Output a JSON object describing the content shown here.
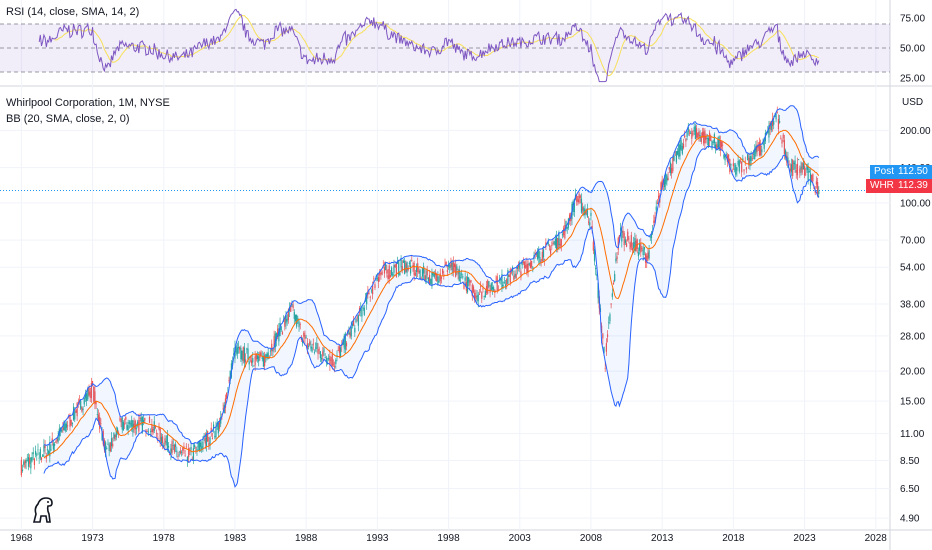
{
  "rsi": {
    "label": "RSI (14, close, SMA, 14, 2)",
    "levels": [
      30,
      50,
      70
    ],
    "ticks": [
      "75.00",
      "50.00",
      "25.00"
    ],
    "line_color": "#7e57c2",
    "signal_color": "#f7e05a"
  },
  "header": {
    "symbol_label": "Whirlpool Corporation, 1M, NYSE",
    "bb_label": "BB (20, SMA, close, 2, 0)"
  },
  "currency": "USD",
  "price_ticks": [
    "200.00",
    "140.00",
    "100.00",
    "70.00",
    "54.00",
    "38.00",
    "28.00",
    "20.00",
    "15.00",
    "11.00",
    "8.50",
    "6.50",
    "4.90"
  ],
  "x_ticks": [
    "1968",
    "1973",
    "1978",
    "1983",
    "1988",
    "1993",
    "1998",
    "2003",
    "2008",
    "2013",
    "2018",
    "2023",
    "2028"
  ],
  "badges": {
    "post_label": "Post",
    "post_value": "112.50",
    "whr_label": "WHR",
    "whr_value": "112.39"
  },
  "colors": {
    "up": "#26a69a",
    "down": "#ef5350",
    "bb_band": "#2962ff",
    "bb_basis": "#ff6d00",
    "post": "#2196f3",
    "whr": "#f23645"
  },
  "chart_data": {
    "type": "line",
    "title": "Whirlpool Corporation, 1M, NYSE",
    "ylabel": "USD",
    "log_scale": true,
    "x": [
      1968,
      1970,
      1972,
      1973,
      1974,
      1975,
      1977,
      1979,
      1980,
      1982,
      1983,
      1985,
      1987,
      1988,
      1990,
      1992,
      1993,
      1995,
      1997,
      1998,
      2000,
      2002,
      2004,
      2006,
      2007,
      2008,
      2009,
      2010,
      2012,
      2013,
      2015,
      2017,
      2018,
      2019,
      2020,
      2021,
      2022,
      2023,
      2024
    ],
    "ylim": [
      4.5,
      300
    ],
    "series": [
      {
        "name": "WHR",
        "values": [
          8.0,
          9.5,
          14,
          17,
          9,
          12,
          12,
          9,
          9,
          12,
          24,
          22,
          36,
          26,
          22,
          36,
          50,
          55,
          48,
          55,
          42,
          48,
          58,
          72,
          105,
          85,
          22,
          75,
          60,
          120,
          200,
          175,
          135,
          150,
          170,
          230,
          140,
          140,
          112.5
        ]
      }
    ]
  }
}
